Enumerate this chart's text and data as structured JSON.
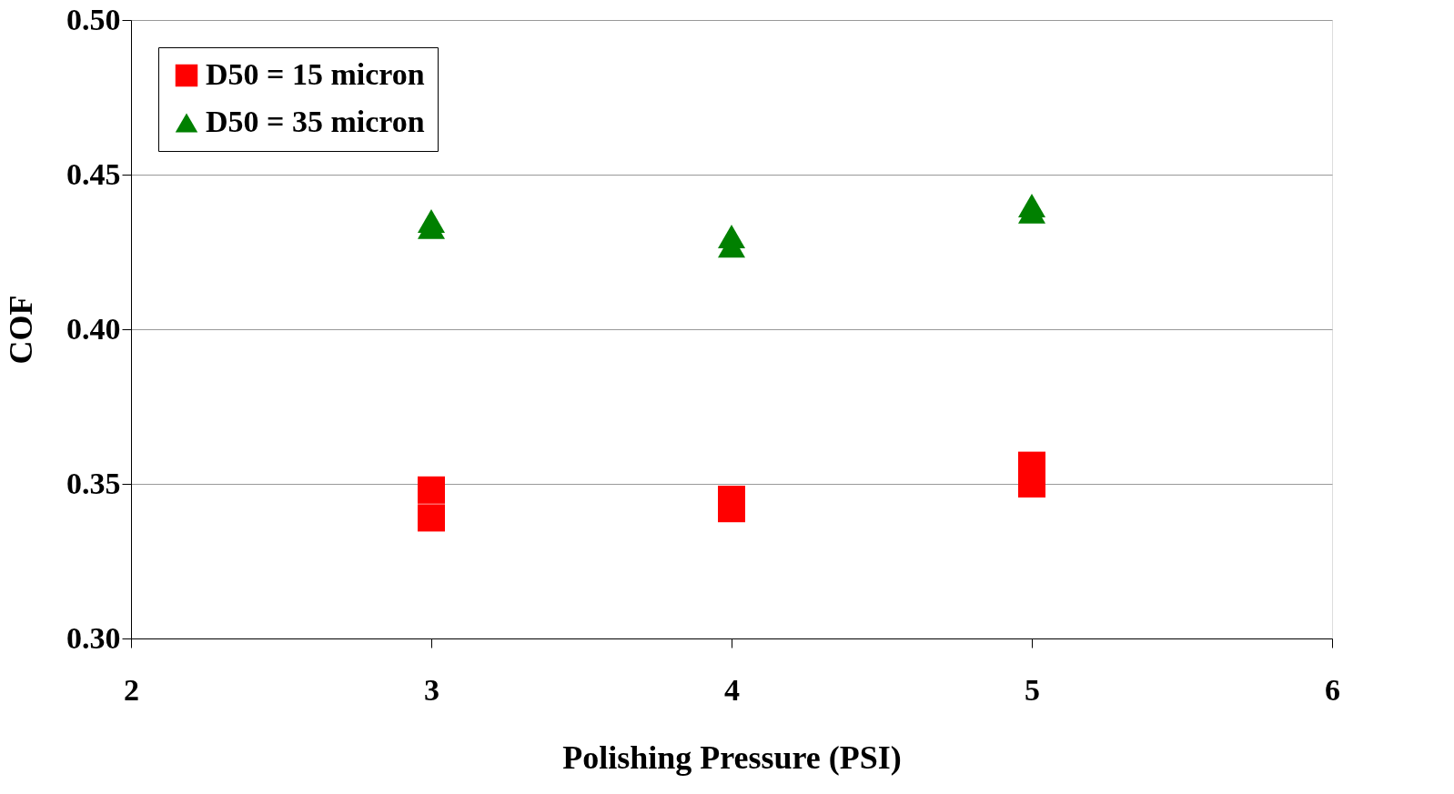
{
  "chart_data": {
    "type": "scatter",
    "xlabel": "Polishing Pressure (PSI)",
    "ylabel": "COF",
    "series": [
      {
        "name": "D50 = 15 micron",
        "color": "#ff0000",
        "marker": "square",
        "x": [
          3,
          3,
          4,
          4,
          5,
          5
        ],
        "values": [
          0.348,
          0.339,
          0.345,
          0.342,
          0.356,
          0.35
        ]
      },
      {
        "name": "D50 = 35 micron",
        "color": "#008000",
        "marker": "triangle",
        "x": [
          3,
          3,
          4,
          4,
          5,
          5
        ],
        "values": [
          0.435,
          0.433,
          0.43,
          0.427,
          0.44,
          0.438
        ]
      }
    ],
    "xlim": [
      2,
      6
    ],
    "xticks": [
      2,
      3,
      4,
      5,
      6
    ],
    "ylim": [
      0.3,
      0.5
    ],
    "yticks": [
      {
        "value": 0.3,
        "label": "0.30"
      },
      0.35,
      {
        "value": 0.4,
        "label": "0.40"
      },
      0.45,
      {
        "value": 0.5,
        "label": "0.50"
      }
    ],
    "grid": "y",
    "legend": "top left"
  }
}
